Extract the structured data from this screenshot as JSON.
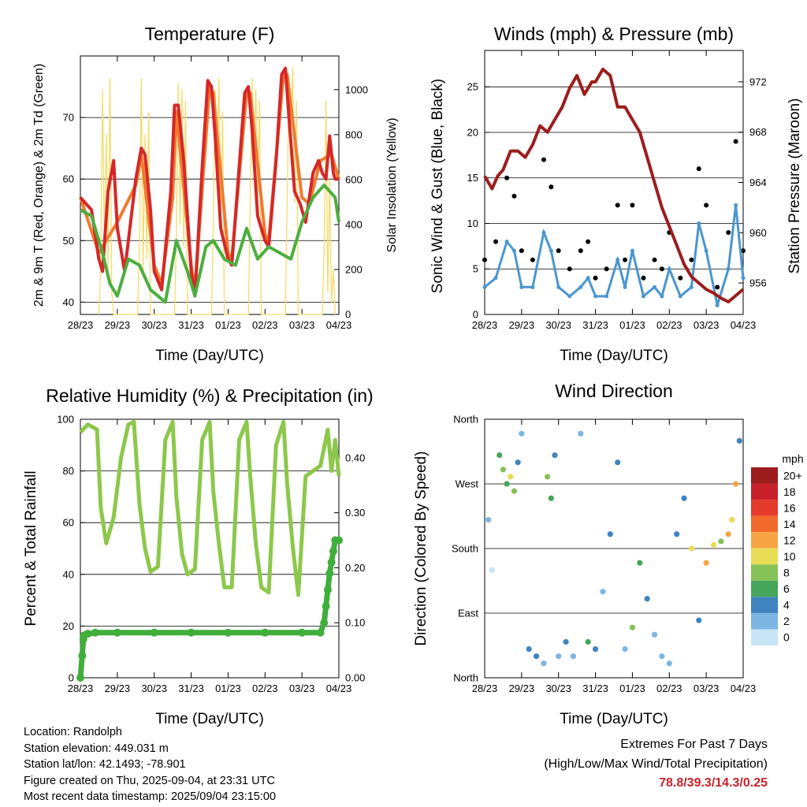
{
  "time_ticks": [
    "28/23",
    "29/23",
    "30/23",
    "31/23",
    "01/23",
    "02/23",
    "03/23",
    "04/23"
  ],
  "time_xlabel": "Time (Day/UTC)",
  "colors": {
    "temp_2m": "#d62728",
    "temp_9m": "#f07b2e",
    "dewpoint": "#4cae3f",
    "solar": "#f3dc6b",
    "gust": "#000000",
    "sonic_wind": "#4a96cf",
    "pressure": "#9c1d1d",
    "rh": "#8cc84b",
    "rain": "#3fae3a",
    "extremes_values": "#c8202a"
  },
  "panels": {
    "temperature": {
      "title": "Temperature (F)",
      "ylabel_left": "2m & 9m T (Red, Orange) & 2m Td (Green)",
      "ylabel_right": "Solar Insolation (Yellow)"
    },
    "winds": {
      "title": "Winds (mph) & Pressure (mb)",
      "ylabel_left": "Sonic Wind & Gust (Blue, Black)",
      "ylabel_right": "Station Pressure (Maroon)"
    },
    "humidity": {
      "title": "Relative Humidity (%) & Precipitation (in)",
      "ylabel_left": "Percent & Total Rainfall"
    },
    "direction": {
      "title": "Wind Direction",
      "ylabel_left": "Direction (Colored By Speed)",
      "colorbar_title": "mph",
      "colorbar_labels": [
        "20+",
        "18",
        "16",
        "14",
        "12",
        "10",
        "8",
        "6",
        "4",
        "2",
        "0"
      ],
      "colorbar_colors": [
        "#9b1c1c",
        "#c8202a",
        "#e33a2b",
        "#f26b2c",
        "#f6a443",
        "#e8dc56",
        "#86c157",
        "#45a55a",
        "#3f83bf",
        "#7db6e2",
        "#c7e4f6"
      ]
    }
  },
  "chart_data": [
    {
      "type": "line",
      "title": "Temperature (F)",
      "xlabel": "Time (Day/UTC)",
      "ylabel": "2m & 9m T (Red, Orange) & 2m Td (Green)",
      "ylabel_right": "Solar Insolation (Yellow)",
      "x_ticks": [
        "28/23",
        "29/23",
        "30/23",
        "31/23",
        "01/23",
        "02/23",
        "03/23",
        "04/23"
      ],
      "x_range_days": [
        0,
        7
      ],
      "ylim": [
        38,
        80
      ],
      "y_ticks": [
        40,
        50,
        60,
        70
      ],
      "y2lim": [
        0,
        1150
      ],
      "y2_ticks": [
        0,
        200,
        400,
        600,
        800,
        1000
      ],
      "series": [
        {
          "name": "2m T",
          "axis": "left",
          "x": [
            0,
            0.15,
            0.3,
            0.5,
            0.6,
            0.75,
            0.9,
            1.0,
            1.2,
            1.5,
            1.65,
            1.75,
            1.9,
            2.0,
            2.2,
            2.45,
            2.55,
            2.65,
            2.8,
            3.0,
            3.1,
            3.3,
            3.45,
            3.55,
            3.65,
            3.8,
            4.0,
            4.1,
            4.3,
            4.45,
            4.55,
            4.65,
            4.8,
            5.0,
            5.1,
            5.3,
            5.45,
            5.55,
            5.65,
            5.8,
            5.95,
            6.1,
            6.3,
            6.45,
            6.55,
            6.65,
            6.75,
            6.85,
            6.9,
            7.0
          ],
          "y": [
            57,
            56,
            55,
            47,
            45,
            58,
            63,
            52,
            45,
            60,
            65,
            64,
            55,
            45,
            42,
            58,
            72,
            72,
            63,
            45,
            41,
            62,
            76,
            75,
            67,
            52,
            47,
            46,
            62,
            74,
            75,
            68,
            54,
            50,
            49,
            63,
            77,
            78,
            70,
            58,
            56,
            53,
            61,
            63,
            61,
            60,
            67,
            61,
            60,
            60
          ]
        },
        {
          "name": "9m T",
          "axis": "left",
          "x": [
            0,
            0.5,
            1.0,
            1.5,
            1.65,
            2.0,
            2.2,
            2.5,
            2.6,
            3.0,
            3.1,
            3.5,
            3.6,
            4.0,
            4.1,
            4.5,
            4.6,
            5.0,
            5.1,
            5.5,
            5.6,
            6.0,
            6.2,
            6.5,
            6.8,
            7.0
          ],
          "y": [
            57,
            48,
            53,
            59,
            64,
            46,
            43,
            57,
            71,
            46,
            42,
            75,
            74,
            48,
            47,
            74,
            74,
            51,
            50,
            77,
            77,
            57,
            56,
            63,
            64,
            60
          ]
        },
        {
          "name": "2m Td",
          "axis": "left",
          "x": [
            0,
            0.3,
            0.6,
            0.8,
            1.0,
            1.3,
            1.6,
            1.9,
            2.1,
            2.3,
            2.6,
            2.9,
            3.1,
            3.4,
            3.6,
            3.9,
            4.2,
            4.5,
            4.8,
            5.1,
            5.4,
            5.7,
            6.0,
            6.3,
            6.6,
            6.9,
            7.0
          ],
          "y": [
            55,
            54,
            48,
            43,
            41,
            47,
            46,
            42,
            41,
            40,
            50,
            45,
            41,
            49,
            50,
            47,
            46,
            52,
            47,
            49,
            48,
            47,
            53,
            57,
            59,
            57,
            53
          ]
        },
        {
          "name": "Solar Insolation",
          "axis": "right",
          "x": [
            0.5,
            0.55,
            0.6,
            0.65,
            0.7,
            0.75,
            0.8,
            0.85,
            0.9,
            1.55,
            1.6,
            1.65,
            1.7,
            1.75,
            1.8,
            1.85,
            1.9,
            2.55,
            2.6,
            2.65,
            2.7,
            2.75,
            2.8,
            2.85,
            2.9,
            3.55,
            3.6,
            3.65,
            3.7,
            3.75,
            3.8,
            3.85,
            3.9,
            4.55,
            4.6,
            4.65,
            4.7,
            4.75,
            4.8,
            4.85,
            4.9,
            5.55,
            5.6,
            5.65,
            5.7,
            5.75,
            5.8,
            5.85,
            5.9,
            6.55,
            6.6,
            6.65,
            6.7,
            6.75,
            6.8,
            6.85,
            6.9
          ],
          "y": [
            0,
            200,
            1000,
            300,
            800,
            200,
            1050,
            100,
            0,
            0,
            300,
            1050,
            200,
            800,
            250,
            900,
            0,
            0,
            350,
            1030,
            400,
            1000,
            300,
            950,
            0,
            0,
            400,
            1000,
            600,
            1050,
            400,
            900,
            0,
            0,
            500,
            1050,
            700,
            1000,
            500,
            950,
            0,
            0,
            500,
            1050,
            800,
            1100,
            500,
            950,
            0,
            0,
            300,
            950,
            100,
            600,
            50,
            200,
            0
          ]
        }
      ]
    },
    {
      "type": "line",
      "title": "Winds (mph) & Pressure (mb)",
      "xlabel": "Time (Day/UTC)",
      "ylabel": "Sonic Wind & Gust (Blue, Black)",
      "ylabel_right": "Station Pressure (Maroon)",
      "x_ticks": [
        "28/23",
        "29/23",
        "30/23",
        "31/23",
        "01/23",
        "02/23",
        "03/23",
        "04/23"
      ],
      "x_range_days": [
        0,
        7
      ],
      "ylim": [
        0,
        29
      ],
      "y_ticks": [
        0,
        5,
        10,
        15,
        20,
        25
      ],
      "y2lim": [
        953.5,
        974.5
      ],
      "y2_ticks": [
        956,
        960,
        964,
        968,
        972
      ],
      "series": [
        {
          "name": "Gust",
          "axis": "left",
          "x": [
            0,
            0.3,
            0.6,
            0.8,
            1.0,
            1.3,
            1.6,
            1.8,
            2.0,
            2.3,
            2.6,
            2.8,
            3.0,
            3.3,
            3.6,
            3.8,
            4.0,
            4.3,
            4.6,
            4.8,
            5.0,
            5.3,
            5.6,
            5.8,
            6.0,
            6.3,
            6.6,
            6.8,
            7.0
          ],
          "y": [
            6,
            8,
            15,
            13,
            7,
            6,
            17,
            14,
            7,
            5,
            7,
            8,
            4,
            5,
            12,
            6,
            12,
            4,
            6,
            5,
            9,
            4,
            6,
            16,
            12,
            3,
            9,
            19,
            7
          ]
        },
        {
          "name": "Sonic Wind",
          "axis": "left",
          "x": [
            0,
            0.3,
            0.6,
            0.8,
            1.0,
            1.3,
            1.6,
            1.8,
            2.0,
            2.3,
            2.6,
            2.8,
            3.0,
            3.3,
            3.6,
            3.8,
            4.0,
            4.3,
            4.6,
            4.8,
            5.0,
            5.3,
            5.6,
            5.8,
            6.0,
            6.3,
            6.6,
            6.8,
            7.0
          ],
          "y": [
            3,
            4,
            8,
            7,
            3,
            3,
            9,
            7,
            3,
            2,
            3,
            4,
            2,
            2,
            6,
            3,
            7,
            2,
            3,
            2,
            5,
            2,
            3,
            10,
            7,
            1,
            5,
            12,
            4
          ]
        },
        {
          "name": "Station Pressure",
          "axis": "right",
          "x": [
            0,
            0.2,
            0.35,
            0.5,
            0.7,
            0.9,
            1.1,
            1.3,
            1.5,
            1.7,
            1.9,
            2.1,
            2.3,
            2.5,
            2.7,
            2.9,
            3.0,
            3.2,
            3.4,
            3.6,
            3.8,
            4.0,
            4.2,
            4.4,
            4.6,
            4.8,
            5.0,
            5.2,
            5.4,
            5.6,
            5.8,
            6.0,
            6.2,
            6.4,
            6.6,
            6.8,
            7.0
          ],
          "y": [
            964.5,
            963.5,
            964.5,
            965,
            966.5,
            966.5,
            966,
            967,
            968.5,
            968,
            969,
            970,
            971.5,
            972.5,
            971,
            972,
            972,
            973,
            972.5,
            970,
            970,
            969,
            968,
            966,
            964,
            962,
            960.5,
            959,
            957.5,
            956.5,
            956,
            955.5,
            955.2,
            954.8,
            954.5,
            955,
            955.5
          ]
        }
      ]
    },
    {
      "type": "line",
      "title": "Relative Humidity (%) & Precipitation (in)",
      "xlabel": "Time (Day/UTC)",
      "ylabel": "Percent & Total Rainfall",
      "x_ticks": [
        "28/23",
        "29/23",
        "30/23",
        "31/23",
        "01/23",
        "02/23",
        "03/23",
        "04/23"
      ],
      "x_range_days": [
        0,
        7
      ],
      "ylim": [
        0,
        100
      ],
      "y_ticks": [
        0,
        20,
        40,
        60,
        80,
        100
      ],
      "y2lim": [
        0,
        0.47
      ],
      "y2_ticks": [
        0.0,
        0.1,
        0.2,
        0.3,
        0.4
      ],
      "y2_tick_labels": [
        "0.00",
        "0.10",
        "0.20",
        "0.30",
        "0.40"
      ],
      "series": [
        {
          "name": "Relative Humidity",
          "axis": "left",
          "x": [
            0,
            0.2,
            0.45,
            0.55,
            0.7,
            0.9,
            1.1,
            1.3,
            1.45,
            1.6,
            1.75,
            1.9,
            2.1,
            2.3,
            2.5,
            2.6,
            2.75,
            2.9,
            3.1,
            3.3,
            3.5,
            3.6,
            3.75,
            3.9,
            4.1,
            4.3,
            4.5,
            4.6,
            4.75,
            4.9,
            5.1,
            5.3,
            5.5,
            5.6,
            5.75,
            5.9,
            6.1,
            6.3,
            6.5,
            6.7,
            6.8,
            6.9,
            7.0
          ],
          "y": [
            95,
            98,
            96,
            66,
            52,
            62,
            85,
            98,
            99,
            67,
            50,
            41,
            43,
            92,
            99,
            70,
            48,
            40,
            42,
            92,
            99,
            72,
            52,
            35,
            35,
            92,
            99,
            78,
            52,
            35,
            33,
            90,
            99,
            75,
            51,
            32,
            78,
            80,
            82,
            96,
            80,
            92,
            78
          ]
        },
        {
          "name": "Total Rainfall",
          "axis": "right",
          "x": [
            0,
            0.05,
            0.08,
            0.1,
            0.2,
            0.4,
            1.0,
            2.0,
            3.0,
            4.0,
            5.0,
            6.0,
            6.5,
            6.6,
            6.65,
            6.7,
            6.75,
            6.8,
            6.85,
            6.9,
            7.0
          ],
          "y": [
            0.0,
            0.04,
            0.07,
            0.077,
            0.08,
            0.082,
            0.082,
            0.082,
            0.082,
            0.082,
            0.082,
            0.082,
            0.082,
            0.1,
            0.13,
            0.16,
            0.19,
            0.21,
            0.23,
            0.25,
            0.25
          ]
        }
      ]
    },
    {
      "type": "scatter",
      "title": "Wind Direction",
      "xlabel": "Time (Day/UTC)",
      "ylabel": "Direction (Colored By Speed)",
      "x_ticks": [
        "28/23",
        "29/23",
        "30/23",
        "31/23",
        "01/23",
        "02/23",
        "03/23",
        "04/23"
      ],
      "x_range_days": [
        0,
        7
      ],
      "y_ticks": [
        "North",
        "East",
        "South",
        "West",
        "North"
      ],
      "y_tick_values_deg": [
        0,
        90,
        180,
        270,
        360
      ],
      "ylim": [
        0,
        360
      ],
      "colorbar": {
        "title": "mph",
        "labels": [
          "20+",
          "18",
          "16",
          "14",
          "12",
          "10",
          "8",
          "6",
          "4",
          "2",
          "0"
        ]
      },
      "points": {
        "x": [
          0.1,
          0.2,
          0.4,
          0.5,
          0.6,
          0.7,
          0.8,
          0.9,
          1.0,
          1.2,
          1.4,
          1.6,
          1.7,
          1.8,
          1.9,
          2.0,
          2.2,
          2.4,
          2.6,
          2.8,
          3.0,
          3.2,
          3.4,
          3.6,
          3.8,
          4.0,
          4.2,
          4.4,
          4.6,
          4.8,
          5.0,
          5.2,
          5.4,
          5.6,
          5.8,
          6.0,
          6.2,
          6.4,
          6.6,
          6.7,
          6.8,
          6.9
        ],
        "deg": [
          220,
          150,
          310,
          290,
          270,
          280,
          260,
          300,
          340,
          40,
          30,
          20,
          280,
          250,
          310,
          30,
          50,
          30,
          340,
          50,
          40,
          120,
          200,
          300,
          40,
          70,
          160,
          110,
          60,
          30,
          20,
          200,
          250,
          180,
          80,
          160,
          185,
          190,
          200,
          220,
          270,
          330
        ],
        "mph": [
          3,
          1,
          6,
          9,
          7,
          10,
          8,
          5,
          3,
          4,
          5,
          3,
          9,
          6,
          4,
          3,
          5,
          2,
          3,
          6,
          4,
          3,
          4,
          5,
          3,
          8,
          6,
          4,
          3,
          2,
          3,
          4,
          5,
          10,
          4,
          12,
          11,
          9,
          13,
          10,
          12,
          4
        ]
      }
    }
  ],
  "info": {
    "location": "Location: Randolph",
    "elevation": "Station elevation: 449.031 m",
    "latlon": "Station lat/lon: 42.1493; -78.901",
    "created": "Figure created on Thu, 2025-09-04, at 23:31 UTC",
    "recent": "Most recent data timestamp: 2025/09/04 23:15:00"
  },
  "extremes": {
    "title": "Extremes For Past 7 Days",
    "subtitle": "(High/Low/Max Wind/Total Precipitation)",
    "values": "78.8/39.3/14.3/0.25"
  }
}
